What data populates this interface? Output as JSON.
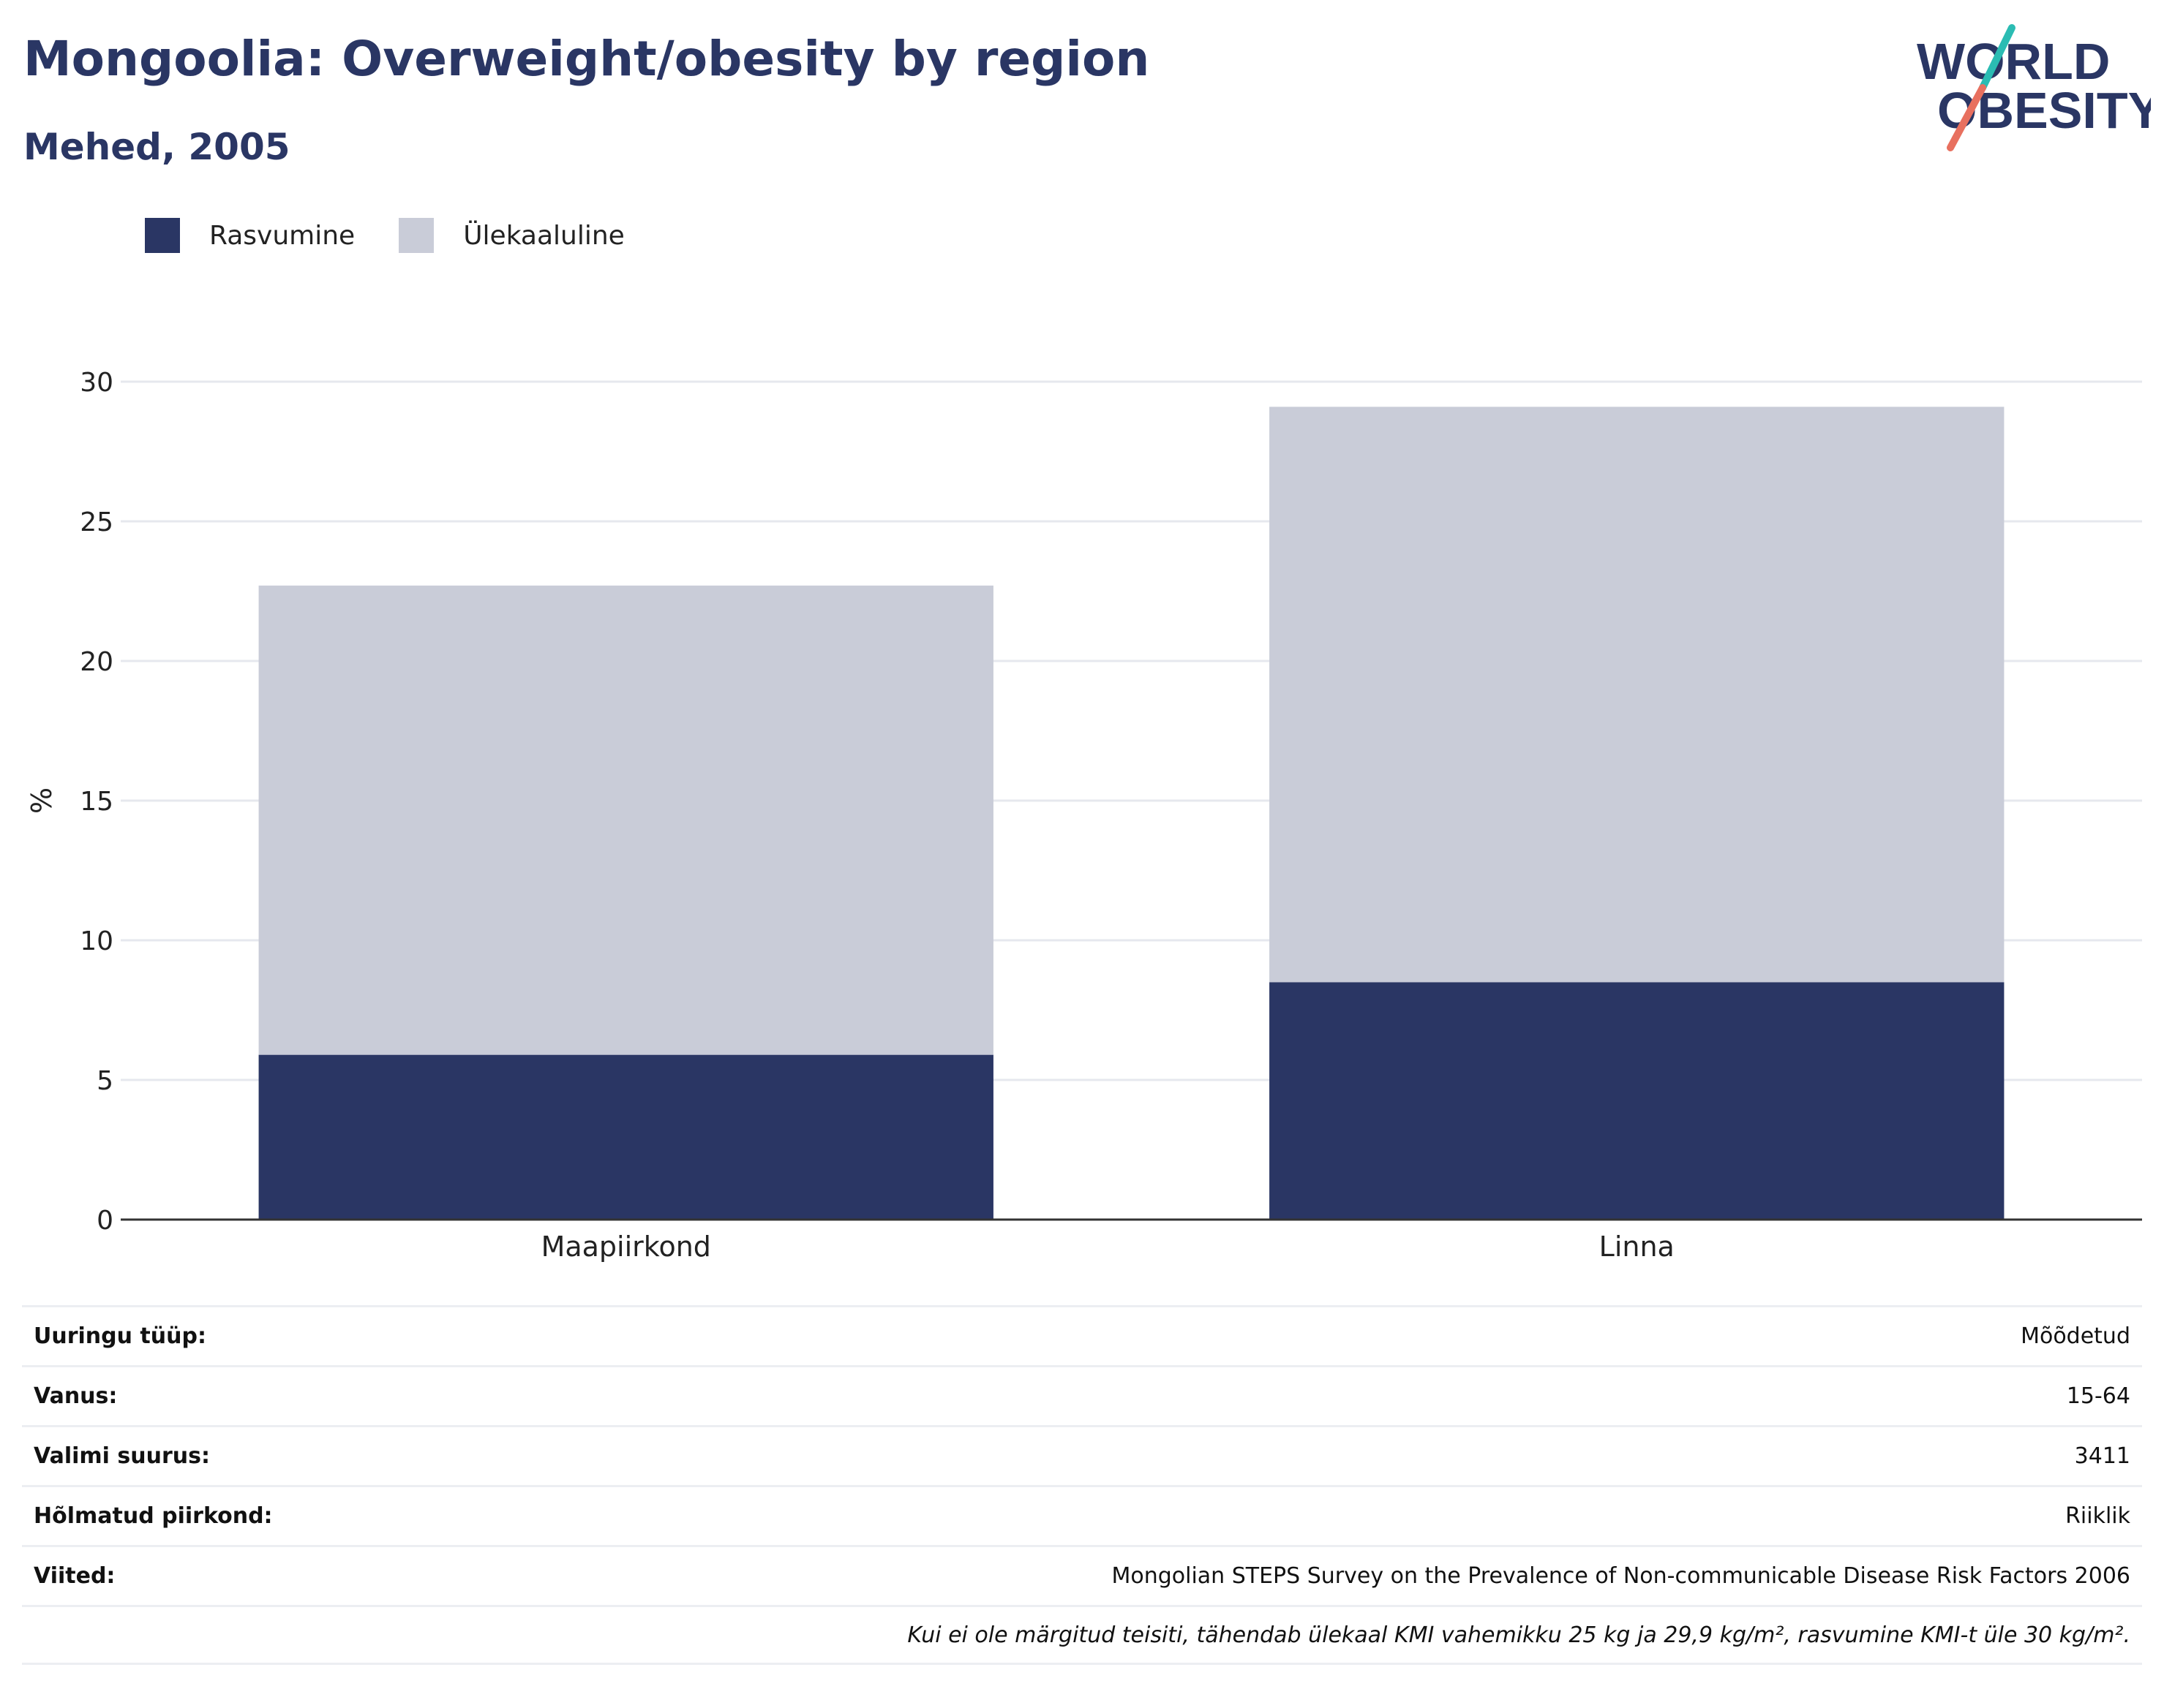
{
  "header": {
    "title": "Mongoolia: Overweight/obesity by region",
    "subtitle": "Mehed, 2005"
  },
  "logo": {
    "line1": "WORLD",
    "line2": "OBESITY",
    "colors": {
      "text": "#2a3664",
      "teal": "#2bbcb3",
      "coral": "#e8705f"
    }
  },
  "colors": {
    "obesity": "#2a3664",
    "overweight": "#c9ccd8",
    "grid": "#e6e8ee",
    "axis": "#333333"
  },
  "chart_data": {
    "type": "bar",
    "stacked": true,
    "categories": [
      "Maapiirkond",
      "Linna"
    ],
    "series": [
      {
        "name": "Rasvumine",
        "values": [
          5.9,
          8.5
        ]
      },
      {
        "name": "Ülekaaluline",
        "values": [
          16.8,
          20.6
        ]
      }
    ],
    "ylabel": "%",
    "ylim": [
      0,
      30
    ],
    "yticks": [
      0,
      5,
      10,
      15,
      20,
      25,
      30
    ],
    "grid": true,
    "legend": "top-left"
  },
  "info": {
    "rows": [
      {
        "label": "Uuringu tüüp:",
        "value": "Mõõdetud"
      },
      {
        "label": "Vanus:",
        "value": "15-64"
      },
      {
        "label": "Valimi suurus:",
        "value": "3411"
      },
      {
        "label": "Hõlmatud piirkond:",
        "value": "Riiklik"
      },
      {
        "label": "Viited:",
        "value": "Mongolian STEPS Survey on the Prevalence of Non-communicable Disease Risk Factors 2006"
      }
    ],
    "footnote": "Kui ei ole märgitud teisiti, tähendab ülekaal KMI vahemikku 25 kg ja 29,9 kg/m², rasvumine KMI-t üle 30 kg/m²."
  }
}
